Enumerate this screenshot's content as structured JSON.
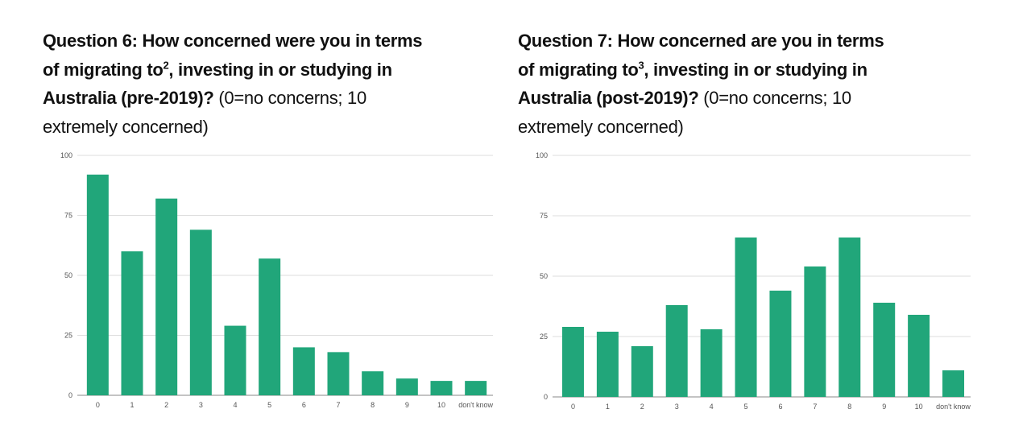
{
  "bar_color": "#21a67a",
  "charts_text": [
    {
      "lines": [
        [
          {
            "b": "Question 6: How concerned were you in terms"
          }
        ],
        [
          {
            "b": "of migrating to"
          },
          {
            "sup": "2"
          },
          {
            "b": ", investing in or studying in"
          }
        ],
        [
          {
            "b": "Australia (pre-2019)?"
          },
          {
            "t": " (0=no concerns; 10"
          }
        ],
        [
          {
            "t": "extremely concerned)"
          }
        ]
      ]
    },
    {
      "lines": [
        [
          {
            "b": "Question 7: How concerned are you in terms"
          }
        ],
        [
          {
            "b": "of migrating to"
          },
          {
            "sup": "3"
          },
          {
            "b": ", investing in or studying in"
          }
        ],
        [
          {
            "b": "Australia (post-2019)?"
          },
          {
            "t": " (0=no concerns; 10"
          }
        ],
        [
          {
            "t": "extremely concerned)"
          }
        ]
      ]
    }
  ],
  "chart_data": [
    {
      "type": "bar",
      "title": "Question 6: How concerned were you in terms of migrating to², investing in or studying in Australia (pre-2019)? (0=no concerns; 10 extremely concerned)",
      "categories": [
        "0",
        "1",
        "2",
        "3",
        "4",
        "5",
        "6",
        "7",
        "8",
        "9",
        "10",
        "don't know"
      ],
      "values": [
        92,
        60,
        82,
        69,
        29,
        57,
        20,
        18,
        10,
        7,
        6,
        6
      ],
      "ylim": [
        0,
        100
      ],
      "yticks": [
        "0",
        "25",
        "50",
        "75",
        "100"
      ],
      "grid": true
    },
    {
      "type": "bar",
      "title": "Question 7: How concerned are you in terms of migrating to³, investing in or studying in Australia (post-2019)? (0=no concerns; 10 extremely concerned)",
      "categories": [
        "0",
        "1",
        "2",
        "3",
        "4",
        "5",
        "6",
        "7",
        "8",
        "9",
        "10",
        "don't know"
      ],
      "values": [
        29,
        27,
        21,
        38,
        28,
        66,
        44,
        54,
        66,
        39,
        34,
        11
      ],
      "ylim": [
        0,
        100
      ],
      "yticks": [
        "0",
        "25",
        "50",
        "75",
        "100"
      ],
      "grid": true
    }
  ]
}
